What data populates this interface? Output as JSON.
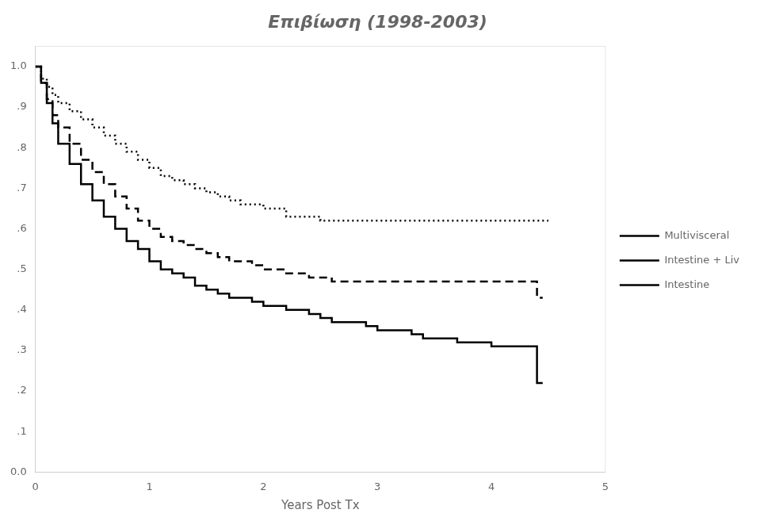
{
  "chart_data": {
    "type": "line",
    "title": "Επιβίωση (1998-2003)",
    "x_label": "Years Post Tx",
    "xlim": [
      0,
      5
    ],
    "xticks": [
      0,
      1,
      2,
      3,
      4,
      5
    ],
    "ylim": [
      0.0,
      1.05
    ],
    "yticks": [
      {
        "value": 0.0,
        "label": "0.0"
      },
      {
        "value": 0.1,
        "label": ".1"
      },
      {
        "value": 0.2,
        "label": ".2"
      },
      {
        "value": 0.3,
        "label": ".3"
      },
      {
        "value": 0.4,
        "label": ".4"
      },
      {
        "value": 0.5,
        "label": ".5"
      },
      {
        "value": 0.6,
        "label": ".6"
      },
      {
        "value": 0.7,
        "label": ".7"
      },
      {
        "value": 0.8,
        "label": ".8"
      },
      {
        "value": 0.9,
        "label": ".9"
      },
      {
        "value": 1.0,
        "label": "1.0"
      }
    ],
    "grid": false,
    "legend": "right",
    "series": [
      {
        "name": "Multivisceral",
        "color": "#000000",
        "line_style": "dotted",
        "x": [
          0,
          0.05,
          0.1,
          0.15,
          0.2,
          0.3,
          0.4,
          0.5,
          0.6,
          0.7,
          0.8,
          0.9,
          1.0,
          1.1,
          1.2,
          1.3,
          1.4,
          1.5,
          1.6,
          1.7,
          1.8,
          1.9,
          2.0,
          2.1,
          2.2,
          2.3,
          2.4,
          2.5,
          2.6,
          2.7,
          2.8,
          2.9,
          3.0,
          3.1,
          3.2,
          3.3,
          3.4,
          3.5,
          3.6,
          3.7,
          3.8,
          3.9,
          4.0,
          4.1,
          4.2,
          4.3,
          4.4,
          4.5
        ],
        "values": [
          1.0,
          0.97,
          0.95,
          0.93,
          0.91,
          0.89,
          0.87,
          0.85,
          0.83,
          0.81,
          0.79,
          0.77,
          0.75,
          0.73,
          0.72,
          0.71,
          0.7,
          0.69,
          0.68,
          0.67,
          0.66,
          0.66,
          0.65,
          0.65,
          0.63,
          0.63,
          0.63,
          0.62,
          0.62,
          0.62,
          0.62,
          0.62,
          0.62,
          0.62,
          0.62,
          0.62,
          0.62,
          0.62,
          0.62,
          0.62,
          0.62,
          0.62,
          0.62,
          0.62,
          0.62,
          0.62,
          0.62,
          0.62
        ]
      },
      {
        "name": "Intestine + Liv",
        "color": "#000000",
        "line_style": "dashed",
        "x": [
          0,
          0.05,
          0.1,
          0.15,
          0.2,
          0.3,
          0.4,
          0.5,
          0.6,
          0.7,
          0.8,
          0.9,
          1.0,
          1.1,
          1.2,
          1.3,
          1.4,
          1.5,
          1.6,
          1.7,
          1.8,
          1.9,
          2.0,
          2.1,
          2.2,
          2.3,
          2.4,
          2.5,
          2.6,
          2.7,
          2.8,
          2.9,
          3.0,
          3.1,
          3.2,
          3.3,
          3.4,
          3.5,
          3.6,
          3.7,
          3.8,
          3.9,
          4.0,
          4.1,
          4.2,
          4.3,
          4.4,
          4.45
        ],
        "values": [
          1.0,
          0.96,
          0.92,
          0.88,
          0.85,
          0.81,
          0.77,
          0.74,
          0.71,
          0.68,
          0.65,
          0.62,
          0.6,
          0.58,
          0.57,
          0.56,
          0.55,
          0.54,
          0.53,
          0.52,
          0.52,
          0.51,
          0.5,
          0.5,
          0.49,
          0.49,
          0.48,
          0.48,
          0.47,
          0.47,
          0.47,
          0.47,
          0.47,
          0.47,
          0.47,
          0.47,
          0.47,
          0.47,
          0.47,
          0.47,
          0.47,
          0.47,
          0.47,
          0.47,
          0.47,
          0.47,
          0.43,
          0.43
        ]
      },
      {
        "name": "Intestine",
        "color": "#000000",
        "line_style": "solid",
        "x": [
          0,
          0.05,
          0.1,
          0.15,
          0.2,
          0.3,
          0.4,
          0.5,
          0.6,
          0.7,
          0.8,
          0.9,
          1.0,
          1.1,
          1.2,
          1.3,
          1.4,
          1.5,
          1.6,
          1.7,
          1.8,
          1.9,
          2.0,
          2.1,
          2.2,
          2.3,
          2.4,
          2.5,
          2.6,
          2.7,
          2.8,
          2.9,
          3.0,
          3.1,
          3.2,
          3.3,
          3.4,
          3.5,
          3.6,
          3.7,
          3.8,
          3.9,
          4.0,
          4.1,
          4.2,
          4.3,
          4.4,
          4.45
        ],
        "values": [
          1.0,
          0.96,
          0.91,
          0.86,
          0.81,
          0.76,
          0.71,
          0.67,
          0.63,
          0.6,
          0.57,
          0.55,
          0.52,
          0.5,
          0.49,
          0.48,
          0.46,
          0.45,
          0.44,
          0.43,
          0.43,
          0.42,
          0.41,
          0.41,
          0.4,
          0.4,
          0.39,
          0.38,
          0.37,
          0.37,
          0.37,
          0.36,
          0.35,
          0.35,
          0.35,
          0.34,
          0.33,
          0.33,
          0.33,
          0.32,
          0.32,
          0.32,
          0.31,
          0.31,
          0.31,
          0.31,
          0.22,
          0.22
        ]
      }
    ]
  }
}
